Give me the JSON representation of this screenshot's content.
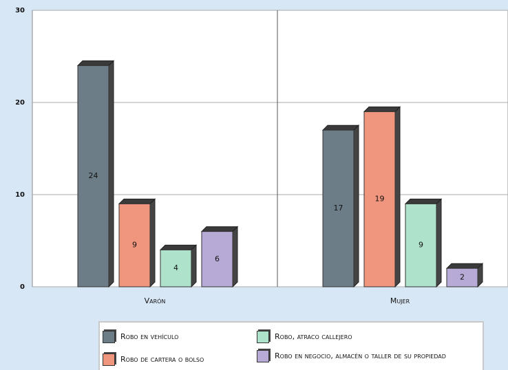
{
  "chart_data": {
    "type": "bar",
    "categories": [
      "Varón",
      "Mujer"
    ],
    "series": [
      {
        "name": "Robo en vehículo",
        "color": "#6d7d88",
        "values": [
          24,
          17
        ]
      },
      {
        "name": "Robo de cartera o bolso",
        "color": "#f0957e",
        "values": [
          9,
          19
        ]
      },
      {
        "name": "Robo, atraco callejero",
        "color": "#aee2cb",
        "values": [
          4,
          9
        ]
      },
      {
        "name": "Robo en negocio, almacén o taller de su propiedad",
        "color": "#b7aad6",
        "values": [
          6,
          2
        ]
      }
    ],
    "ylim": [
      0,
      30
    ],
    "yticks": [
      0,
      10,
      20,
      30
    ],
    "grid": true
  }
}
